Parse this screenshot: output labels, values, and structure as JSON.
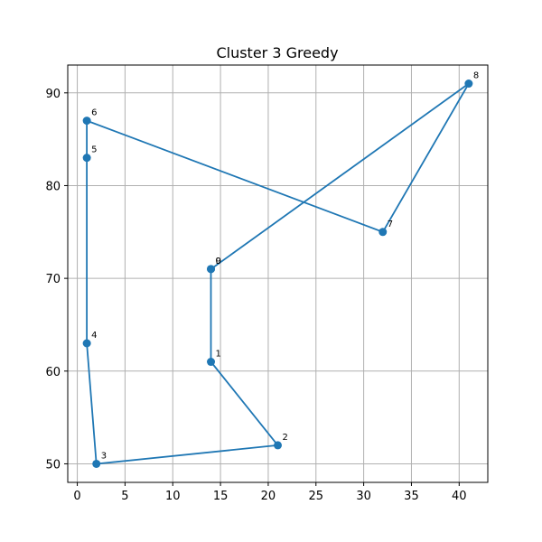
{
  "chart_data": {
    "type": "line",
    "title": "Cluster 3 Greedy",
    "xlabel": "",
    "ylabel": "",
    "xlim": [
      -1.0,
      43.0
    ],
    "ylim": [
      48.0,
      93.0
    ],
    "xticks": [
      0,
      5,
      10,
      15,
      20,
      25,
      30,
      35,
      40
    ],
    "yticks": [
      50,
      60,
      70,
      80,
      90
    ],
    "grid": true,
    "legend": "none",
    "colors": {
      "series": "#1f77b4",
      "grid": "#b0b0b0",
      "axes": "#000000"
    },
    "points": [
      {
        "label": "0",
        "x": 14,
        "y": 71
      },
      {
        "label": "1",
        "x": 14,
        "y": 61
      },
      {
        "label": "2",
        "x": 21,
        "y": 52
      },
      {
        "label": "3",
        "x": 2,
        "y": 50
      },
      {
        "label": "4",
        "x": 1,
        "y": 63
      },
      {
        "label": "5",
        "x": 1,
        "y": 83
      },
      {
        "label": "6",
        "x": 1,
        "y": 87
      },
      {
        "label": "7",
        "x": 32,
        "y": 75
      },
      {
        "label": "8",
        "x": 41,
        "y": 91
      },
      {
        "label": "9",
        "x": 14,
        "y": 71
      }
    ]
  }
}
